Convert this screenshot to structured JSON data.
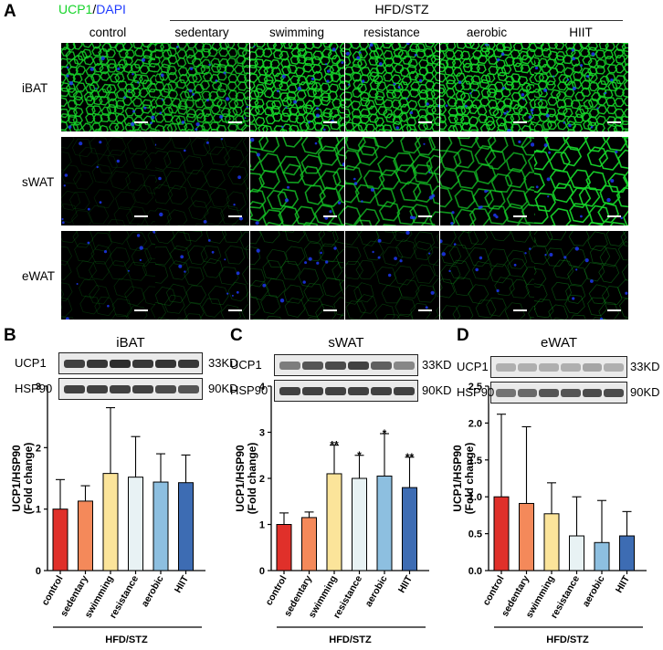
{
  "figure": {
    "panels": {
      "A": "A",
      "B": "B",
      "C": "C",
      "D": "D"
    },
    "stain": {
      "green": "UCP1",
      "sep": "/",
      "blue": "DAPI"
    },
    "group_label": "HFD/STZ",
    "columns": [
      "control",
      "sedentary",
      "swimming",
      "resistance",
      "aerobic",
      "HIIT"
    ],
    "rows": [
      {
        "label": "iBAT",
        "intensity": [
          0.85,
          0.8,
          0.95,
          0.92,
          0.95,
          0.9
        ]
      },
      {
        "label": "sWAT",
        "intensity": [
          0.15,
          0.2,
          0.75,
          0.7,
          0.7,
          0.95
        ]
      },
      {
        "label": "eWAT",
        "intensity": [
          0.2,
          0.25,
          0.3,
          0.25,
          0.3,
          0.35
        ]
      }
    ],
    "colors": {
      "green": "#16d42a",
      "blue": "#1f3bff"
    }
  },
  "blots": [
    {
      "panel": "B",
      "title": "iBAT",
      "proteins": [
        {
          "name": "UCP1",
          "kd": "33KD",
          "darkness": [
            0.85,
            0.9,
            0.95,
            0.9,
            0.92,
            0.9
          ]
        },
        {
          "name": "HSP90",
          "kd": "90KD",
          "darkness": [
            0.85,
            0.85,
            0.85,
            0.85,
            0.8,
            0.75
          ]
        }
      ]
    },
    {
      "panel": "C",
      "title": "sWAT",
      "proteins": [
        {
          "name": "UCP1",
          "kd": "33KD",
          "darkness": [
            0.55,
            0.75,
            0.8,
            0.85,
            0.7,
            0.5
          ]
        },
        {
          "name": "HSP90",
          "kd": "90KD",
          "darkness": [
            0.85,
            0.85,
            0.85,
            0.85,
            0.85,
            0.85
          ]
        }
      ]
    },
    {
      "panel": "D",
      "title": "eWAT",
      "proteins": [
        {
          "name": "UCP1",
          "kd": "33KD",
          "darkness": [
            0.3,
            0.3,
            0.3,
            0.3,
            0.35,
            0.3
          ]
        },
        {
          "name": "HSP90",
          "kd": "90KD",
          "darkness": [
            0.6,
            0.65,
            0.75,
            0.75,
            0.8,
            0.8
          ]
        }
      ]
    }
  ],
  "chart_data": [
    {
      "panel": "B",
      "type": "bar",
      "title": "",
      "ylabel": "UCP1/HSP90 (Fold change)",
      "categories": [
        "control",
        "sedentary",
        "swimming",
        "resistance",
        "aerobic",
        "HIIT"
      ],
      "values": [
        1.0,
        1.13,
        1.58,
        1.52,
        1.44,
        1.43
      ],
      "errors": [
        0.48,
        0.25,
        1.07,
        0.66,
        0.46,
        0.45
      ],
      "significance": [
        "",
        "",
        "",
        "",
        "",
        ""
      ],
      "ylim": [
        0,
        3
      ],
      "yticks": [
        0,
        1,
        2,
        3
      ],
      "xgroup": "HFD/STZ",
      "colors": [
        "#e0302a",
        "#f4895a",
        "#fbe49a",
        "#e8f2f4",
        "#8dbfe0",
        "#3d6cb3"
      ]
    },
    {
      "panel": "C",
      "type": "bar",
      "title": "",
      "ylabel": "UCP1/HSP90 (Fold change)",
      "categories": [
        "control",
        "sedentary",
        "swimming",
        "resistance",
        "aerobic",
        "HIIT"
      ],
      "values": [
        1.0,
        1.15,
        2.1,
        2.0,
        2.05,
        1.8
      ],
      "errors": [
        0.25,
        0.12,
        0.62,
        0.5,
        0.92,
        0.66
      ],
      "significance": [
        "",
        "",
        "**",
        "*",
        "*",
        "**"
      ],
      "ylim": [
        0,
        4
      ],
      "yticks": [
        0,
        1,
        2,
        3,
        4
      ],
      "xgroup": "HFD/STZ",
      "colors": [
        "#e0302a",
        "#f4895a",
        "#fbe49a",
        "#e8f2f4",
        "#8dbfe0",
        "#3d6cb3"
      ]
    },
    {
      "panel": "D",
      "type": "bar",
      "title": "",
      "ylabel": "UCP1/HSP90 (Fold change)",
      "categories": [
        "control",
        "sedentary",
        "swimming",
        "resistance",
        "aerobic",
        "HIIT"
      ],
      "values": [
        1.0,
        0.91,
        0.77,
        0.47,
        0.38,
        0.47
      ],
      "errors": [
        1.12,
        1.04,
        0.42,
        0.53,
        0.57,
        0.33
      ],
      "significance": [
        "",
        "",
        "",
        "",
        "",
        ""
      ],
      "ylim": [
        0,
        2.5
      ],
      "yticks": [
        "0.0",
        "0.5",
        "1.0",
        "1.5",
        "2.0",
        "2.5"
      ],
      "xgroup": "HFD/STZ",
      "colors": [
        "#e0302a",
        "#f4895a",
        "#fbe49a",
        "#e8f2f4",
        "#8dbfe0",
        "#3d6cb3"
      ]
    }
  ]
}
